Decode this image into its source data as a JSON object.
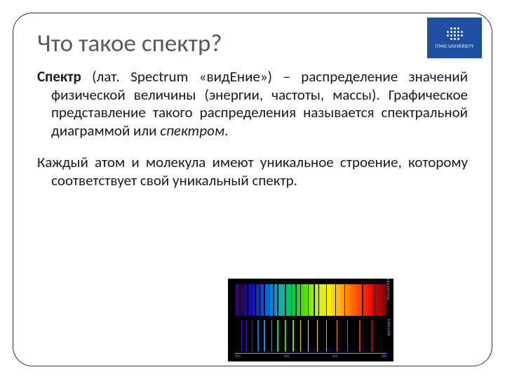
{
  "logo": {
    "text": "ITMO UNIVERSITY",
    "bg_color": "#1f4fa3"
  },
  "title": "Что такое спектр?",
  "para1": {
    "lead": "Спектр",
    "rest_a": " (лат. Spectrum «видЕние») – распределение значений физической величины (энергии, частоты, массы). Графическое представление такого распределения называется спектральной диаграммой или ",
    "ital": "спектром",
    "rest_b": "."
  },
  "para2": "Каждый атом и молекула имеют уникальное строение, которому соответствует свой уникальный спектр.",
  "spectra": {
    "absorption": {
      "label": "ABSORPTION",
      "dark_lines_pct": [
        3,
        5,
        8,
        11,
        13,
        16,
        19,
        22,
        25,
        28,
        33,
        37,
        40,
        43,
        48,
        52,
        55,
        60,
        66,
        72,
        84,
        92
      ]
    },
    "emission": {
      "label": "EMISSION",
      "bright_lines": [
        {
          "p": 4,
          "c": "#4b00a0"
        },
        {
          "p": 7,
          "c": "#3300cc"
        },
        {
          "p": 11,
          "c": "#0040e0"
        },
        {
          "p": 15,
          "c": "#0066ff"
        },
        {
          "p": 19,
          "c": "#0099dd"
        },
        {
          "p": 24,
          "c": "#00ccaa"
        },
        {
          "p": 28,
          "c": "#00dd66"
        },
        {
          "p": 33,
          "c": "#22dd22"
        },
        {
          "p": 38,
          "c": "#77e000"
        },
        {
          "p": 43,
          "c": "#cce000"
        },
        {
          "p": 48,
          "c": "#ffe000"
        },
        {
          "p": 54,
          "c": "#ffcc00"
        },
        {
          "p": 60,
          "c": "#ffaa00"
        },
        {
          "p": 67,
          "c": "#ff7700"
        },
        {
          "p": 74,
          "c": "#ff4400"
        },
        {
          "p": 82,
          "c": "#ee2200"
        },
        {
          "p": 90,
          "c": "#bb0000"
        }
      ]
    },
    "axis_ticks": [
      "400",
      "500",
      "600",
      "700"
    ]
  }
}
